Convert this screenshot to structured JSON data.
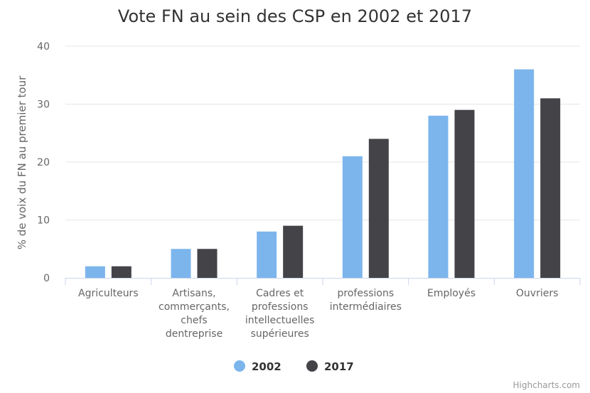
{
  "chart_data": {
    "type": "bar",
    "title": "Vote FN au sein des CSP en 2002 et 2017",
    "xlabel": "",
    "ylabel": "% de voix du FN au premier tour",
    "ylim": [
      0,
      40
    ],
    "yticks": [
      0,
      10,
      20,
      30,
      40
    ],
    "grid": true,
    "legend_position": "bottom",
    "categories": [
      [
        "Agriculteurs"
      ],
      [
        "Artisans,",
        "commerçants,",
        "chefs",
        "dentreprise"
      ],
      [
        "Cadres et",
        "professions",
        "intellectuelles",
        "supérieures"
      ],
      [
        "professions",
        "intermédiaires"
      ],
      [
        "Employés"
      ],
      [
        "Ouvriers"
      ]
    ],
    "series": [
      {
        "name": "2002",
        "color": "#7cb5ec",
        "values": [
          2,
          5,
          8,
          21,
          28,
          36
        ]
      },
      {
        "name": "2017",
        "color": "#434348",
        "values": [
          2,
          5,
          9,
          24,
          29,
          31
        ]
      }
    ]
  },
  "credits": "Highcharts.com"
}
